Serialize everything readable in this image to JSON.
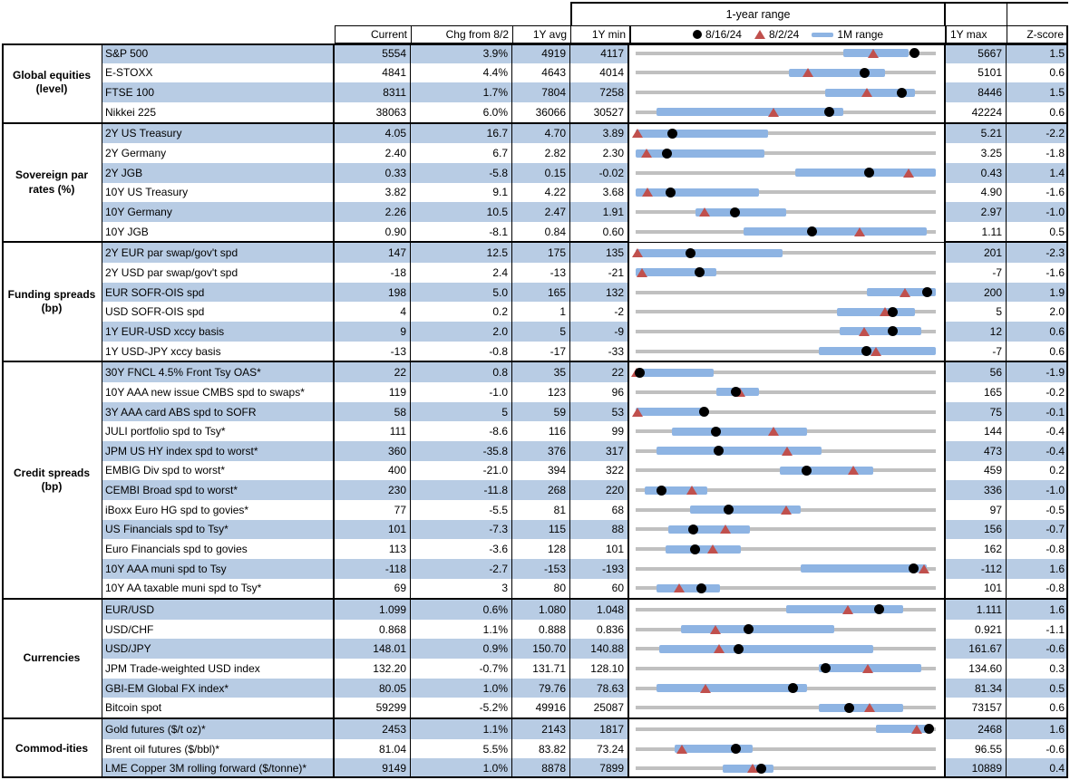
{
  "colors": {
    "stripe": "#b8cce4",
    "bar": "#8eb4e3",
    "track": "#c0c0c0",
    "tri": "#c0504d",
    "dot": "#000000"
  },
  "header": {
    "range_title": "1-year range",
    "columns": {
      "current": "Current",
      "chg": "Chg from 8/2",
      "avg": "1Y avg",
      "min": "1Y min",
      "max": "1Y max",
      "z": "Z-score"
    }
  },
  "chart_data": {
    "type": "range_strip_table",
    "description": "Each row: gray line = 1Y range (min to max), blue bar = 1M range, triangle = 8/2/24 level, dot = 8/16/24 level; positions are % along the 1Y range",
    "legend": [
      {
        "icon": "dot",
        "label": "8/16/24"
      },
      {
        "icon": "triangle",
        "label": "8/2/24"
      },
      {
        "icon": "bar",
        "label": "1M range"
      }
    ],
    "sections": [
      {
        "category": "Global equities (level)",
        "rows": [
          {
            "name": "S&P 500",
            "current": "5554",
            "chg": "3.9%",
            "avg": "4919",
            "min": "4117",
            "max": "5667",
            "z": "1.5",
            "bar": [
              69,
              91
            ],
            "dot": 92.7,
            "tri": 79.2
          },
          {
            "name": "E-STOXX",
            "current": "4841",
            "chg": "4.4%",
            "avg": "4643",
            "min": "4014",
            "max": "5101",
            "z": "0.6",
            "bar": [
              51,
              83
            ],
            "dot": 76.1,
            "tri": 57.3
          },
          {
            "name": "FTSE 100",
            "current": "8311",
            "chg": "1.7%",
            "avg": "7804",
            "min": "7258",
            "max": "8446",
            "z": "1.5",
            "bar": [
              63,
              93
            ],
            "dot": 88.6,
            "tri": 76.9
          },
          {
            "name": "Nikkei 225",
            "current": "38063",
            "chg": "6.0%",
            "avg": "36066",
            "min": "30527",
            "max": "42224",
            "z": "0.6",
            "bar": [
              7,
              69
            ],
            "dot": 64.4,
            "tri": 46.0
          }
        ]
      },
      {
        "category": "Sovereign par rates (%)",
        "rows": [
          {
            "name": "2Y US Treasury",
            "current": "4.05",
            "chg": "16.7",
            "avg": "4.70",
            "min": "3.89",
            "max": "5.21",
            "z": "-2.2",
            "bar": [
              0,
              44
            ],
            "dot": 12.1,
            "tri": 0.5
          },
          {
            "name": "2Y Germany",
            "current": "2.40",
            "chg": "6.7",
            "avg": "2.82",
            "min": "2.30",
            "max": "3.25",
            "z": "-1.8",
            "bar": [
              0,
              43
            ],
            "dot": 10.5,
            "tri": 3.5
          },
          {
            "name": "2Y JGB",
            "current": "0.33",
            "chg": "-5.8",
            "avg": "0.15",
            "min": "-0.02",
            "max": "0.43",
            "z": "1.4",
            "bar": [
              53,
              100
            ],
            "dot": 77.8,
            "tri": 90.7
          },
          {
            "name": "10Y US Treasury",
            "current": "3.82",
            "chg": "9.1",
            "avg": "4.22",
            "min": "3.68",
            "max": "4.90",
            "z": "-1.6",
            "bar": [
              0,
              41
            ],
            "dot": 11.5,
            "tri": 4.0
          },
          {
            "name": "10Y Germany",
            "current": "2.26",
            "chg": "10.5",
            "avg": "2.47",
            "min": "1.91",
            "max": "2.97",
            "z": "-1.0",
            "bar": [
              20,
              50
            ],
            "dot": 33.0,
            "tri": 23.1
          },
          {
            "name": "10Y JGB",
            "current": "0.90",
            "chg": "-8.1",
            "avg": "0.84",
            "min": "0.60",
            "max": "1.11",
            "z": "0.5",
            "bar": [
              36,
              97
            ],
            "dot": 58.8,
            "tri": 74.7
          }
        ]
      },
      {
        "category": "Funding spreads (bp)",
        "rows": [
          {
            "name": "2Y EUR par swap/gov't spd",
            "current": "147",
            "chg": "12.5",
            "avg": "175",
            "min": "135",
            "max": "201",
            "z": "-2.3",
            "bar": [
              0,
              49
            ],
            "dot": 18.2,
            "tri": 0.5
          },
          {
            "name": "2Y USD par swap/gov't spd",
            "current": "-18",
            "chg": "2.4",
            "avg": "-13",
            "min": "-21",
            "max": "-7",
            "z": "-1.6",
            "bar": [
              0,
              27
            ],
            "dot": 21.4,
            "tri": 2.0
          },
          {
            "name": "EUR SOFR-OIS spd",
            "current": "198",
            "chg": "5.0",
            "avg": "165",
            "min": "132",
            "max": "200",
            "z": "1.9",
            "bar": [
              77,
              100
            ],
            "dot": 97.1,
            "tri": 89.7
          },
          {
            "name": "USD SOFR-OIS spd",
            "current": "4",
            "chg": "0.2",
            "avg": "1",
            "min": "-2",
            "max": "5",
            "z": "2.0",
            "bar": [
              67,
              93
            ],
            "dot": 85.7,
            "tri": 82.9
          },
          {
            "name": "1Y EUR-USD xccy basis",
            "current": "9",
            "chg": "2.0",
            "avg": "5",
            "min": "-9",
            "max": "12",
            "z": "0.6",
            "bar": [
              68,
              95
            ],
            "dot": 85.7,
            "tri": 76.2
          },
          {
            "name": "1Y USD-JPY xccy basis",
            "current": "-13",
            "chg": "-0.8",
            "avg": "-17",
            "min": "-33",
            "max": "-7",
            "z": "0.6",
            "bar": [
              61,
              100
            ],
            "dot": 76.9,
            "tri": 80.0
          }
        ]
      },
      {
        "category": "Credit spreads (bp)",
        "rows": [
          {
            "name": "30Y FNCL 4.5% Front Tsy OAS*",
            "current": "22",
            "chg": "0.8",
            "avg": "35",
            "min": "22",
            "max": "56",
            "z": "-1.9",
            "bar": [
              0,
              26
            ],
            "dot": 1.5,
            "tri": 0.3
          },
          {
            "name": "10Y AAA new issue CMBS spd to swaps*",
            "current": "119",
            "chg": "-1.0",
            "avg": "123",
            "min": "96",
            "max": "165",
            "z": "-0.2",
            "bar": [
              27,
              41
            ],
            "dot": 33.3,
            "tri": 34.8
          },
          {
            "name": "3Y AAA card ABS spd to SOFR",
            "current": "58",
            "chg": "5",
            "avg": "59",
            "min": "53",
            "max": "75",
            "z": "-0.1",
            "bar": [
              0,
              23
            ],
            "dot": 22.7,
            "tri": 0.5
          },
          {
            "name": "JULI portfolio spd to Tsy*",
            "current": "111",
            "chg": "-8.6",
            "avg": "116",
            "min": "99",
            "max": "144",
            "z": "-0.4",
            "bar": [
              12,
              57
            ],
            "dot": 26.7,
            "tri": 45.8
          },
          {
            "name": "JPM US HY index spd to worst*",
            "current": "360",
            "chg": "-35.8",
            "avg": "376",
            "min": "317",
            "max": "473",
            "z": "-0.4",
            "bar": [
              7,
              62
            ],
            "dot": 27.6,
            "tri": 50.5
          },
          {
            "name": "EMBIG Div spd to worst*",
            "current": "400",
            "chg": "-21.0",
            "avg": "394",
            "min": "322",
            "max": "459",
            "z": "0.2",
            "bar": [
              48,
              79
            ],
            "dot": 56.9,
            "tri": 72.3
          },
          {
            "name": "CEMBI Broad spd to worst*",
            "current": "230",
            "chg": "-11.8",
            "avg": "268",
            "min": "220",
            "max": "336",
            "z": "-1.0",
            "bar": [
              3,
              24
            ],
            "dot": 8.6,
            "tri": 18.8
          },
          {
            "name": "iBoxx Euro HG spd to govies*",
            "current": "77",
            "chg": "-5.5",
            "avg": "81",
            "min": "68",
            "max": "97",
            "z": "-0.5",
            "bar": [
              18,
              55
            ],
            "dot": 31.0,
            "tri": 50.0
          },
          {
            "name": "US Financials spd to Tsy*",
            "current": "101",
            "chg": "-7.3",
            "avg": "115",
            "min": "88",
            "max": "156",
            "z": "-0.7",
            "bar": [
              11,
              38
            ],
            "dot": 19.1,
            "tri": 29.9
          },
          {
            "name": "Euro Financials spd to govies",
            "current": "113",
            "chg": "-3.6",
            "avg": "128",
            "min": "101",
            "max": "162",
            "z": "-0.8",
            "bar": [
              10,
              35
            ],
            "dot": 19.7,
            "tri": 25.6
          },
          {
            "name": "10Y AAA muni spd to Tsy",
            "current": "-118",
            "chg": "-2.7",
            "avg": "-153",
            "min": "-193",
            "max": "-112",
            "z": "1.6",
            "bar": [
              55,
              97
            ],
            "dot": 92.6,
            "tri": 95.9
          },
          {
            "name": "10Y AA taxable muni spd to Tsy*",
            "current": "69",
            "chg": "3",
            "avg": "80",
            "min": "60",
            "max": "101",
            "z": "-0.8",
            "bar": [
              7,
              28
            ],
            "dot": 22.0,
            "tri": 14.6
          }
        ]
      },
      {
        "category": "Currencies",
        "rows": [
          {
            "name": "EUR/USD",
            "current": "1.099",
            "chg": "0.6%",
            "avg": "1.080",
            "min": "1.048",
            "max": "1.111",
            "z": "1.6",
            "bar": [
              50,
              89
            ],
            "dot": 81.0,
            "tri": 70.5
          },
          {
            "name": "USD/CHF",
            "current": "0.868",
            "chg": "1.1%",
            "avg": "0.888",
            "min": "0.836",
            "max": "0.921",
            "z": "-1.1",
            "bar": [
              15,
              66
            ],
            "dot": 37.6,
            "tri": 26.6
          },
          {
            "name": "USD/JPY",
            "current": "148.01",
            "chg": "0.9%",
            "avg": "150.70",
            "min": "140.88",
            "max": "161.67",
            "z": "-0.6",
            "bar": [
              8,
              79
            ],
            "dot": 34.3,
            "tri": 27.9
          },
          {
            "name": "JPM Trade-weighted USD index",
            "current": "132.20",
            "chg": "-0.7%",
            "avg": "131.71",
            "min": "128.10",
            "max": "134.60",
            "z": "0.3",
            "bar": [
              61,
              95
            ],
            "dot": 63.1,
            "tri": 77.4
          },
          {
            "name": "GBI-EM Global FX index*",
            "current": "80.05",
            "chg": "1.0%",
            "avg": "79.76",
            "min": "78.63",
            "max": "81.34",
            "z": "0.5",
            "bar": [
              7,
              57
            ],
            "dot": 52.4,
            "tri": 23.2
          },
          {
            "name": "Bitcoin spot",
            "current": "59299",
            "chg": "-5.2%",
            "avg": "49916",
            "min": "25087",
            "max": "73157",
            "z": "0.6",
            "bar": [
              61,
              89
            ],
            "dot": 71.2,
            "tri": 77.9
          }
        ]
      },
      {
        "category": "Commod-ities",
        "rows": [
          {
            "name": "Gold futures ($/t oz)*",
            "current": "2453",
            "chg": "1.1%",
            "avg": "2143",
            "min": "1817",
            "max": "2468",
            "z": "1.6",
            "bar": [
              80,
              98
            ],
            "dot": 97.7,
            "tri": 93.6
          },
          {
            "name": "Brent oil futures ($/bbl)*",
            "current": "81.04",
            "chg": "5.5%",
            "avg": "83.82",
            "min": "73.24",
            "max": "96.55",
            "z": "-0.6",
            "bar": [
              13,
              39
            ],
            "dot": 33.5,
            "tri": 15.4
          },
          {
            "name": "LME Copper 3M rolling forward ($/tonne)*",
            "current": "9149",
            "chg": "1.0%",
            "avg": "8878",
            "min": "7899",
            "max": "10889",
            "z": "0.4",
            "bar": [
              29,
              46
            ],
            "dot": 41.8,
            "tri": 38.8
          }
        ]
      }
    ]
  }
}
